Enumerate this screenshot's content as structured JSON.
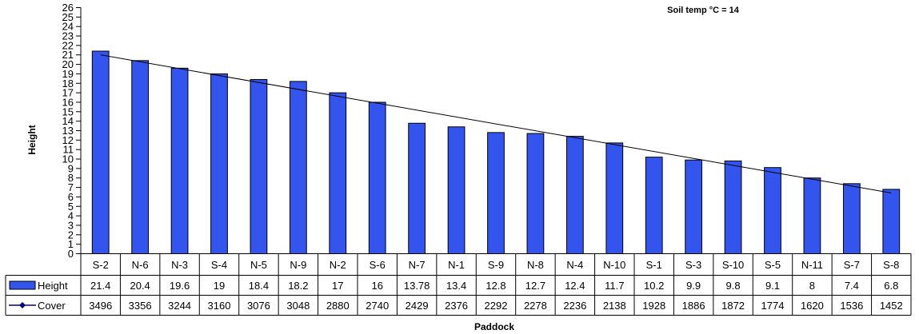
{
  "chart_data": {
    "type": "bar",
    "annotation": "Soil temp °C = 14",
    "xlabel": "Paddock",
    "ylabel": "Height",
    "ylim": [
      0,
      26
    ],
    "ytick_step": 1,
    "grid": false,
    "trendline": true,
    "categories": [
      "S-2",
      "N-6",
      "N-3",
      "S-4",
      "N-5",
      "N-9",
      "N-2",
      "S-6",
      "N-7",
      "N-1",
      "S-9",
      "N-8",
      "N-4",
      "N-10",
      "S-1",
      "S-3",
      "S-10",
      "S-5",
      "N-11",
      "S-7",
      "S-8"
    ],
    "series": [
      {
        "name": "Height",
        "kind": "bar",
        "color": "#3355ee",
        "values": [
          21.4,
          20.4,
          19.6,
          19,
          18.4,
          18.2,
          17,
          16,
          13.78,
          13.4,
          12.8,
          12.7,
          12.4,
          11.7,
          10.2,
          9.9,
          9.8,
          9.1,
          8,
          7.4,
          6.8
        ]
      },
      {
        "name": "Cover",
        "kind": "line",
        "color": "#000080",
        "values": [
          3496,
          3356,
          3244,
          3160,
          3076,
          3048,
          2880,
          2740,
          2429,
          2376,
          2292,
          2278,
          2236,
          2138,
          1928,
          1886,
          1872,
          1774,
          1620,
          1536,
          1452
        ]
      }
    ]
  }
}
